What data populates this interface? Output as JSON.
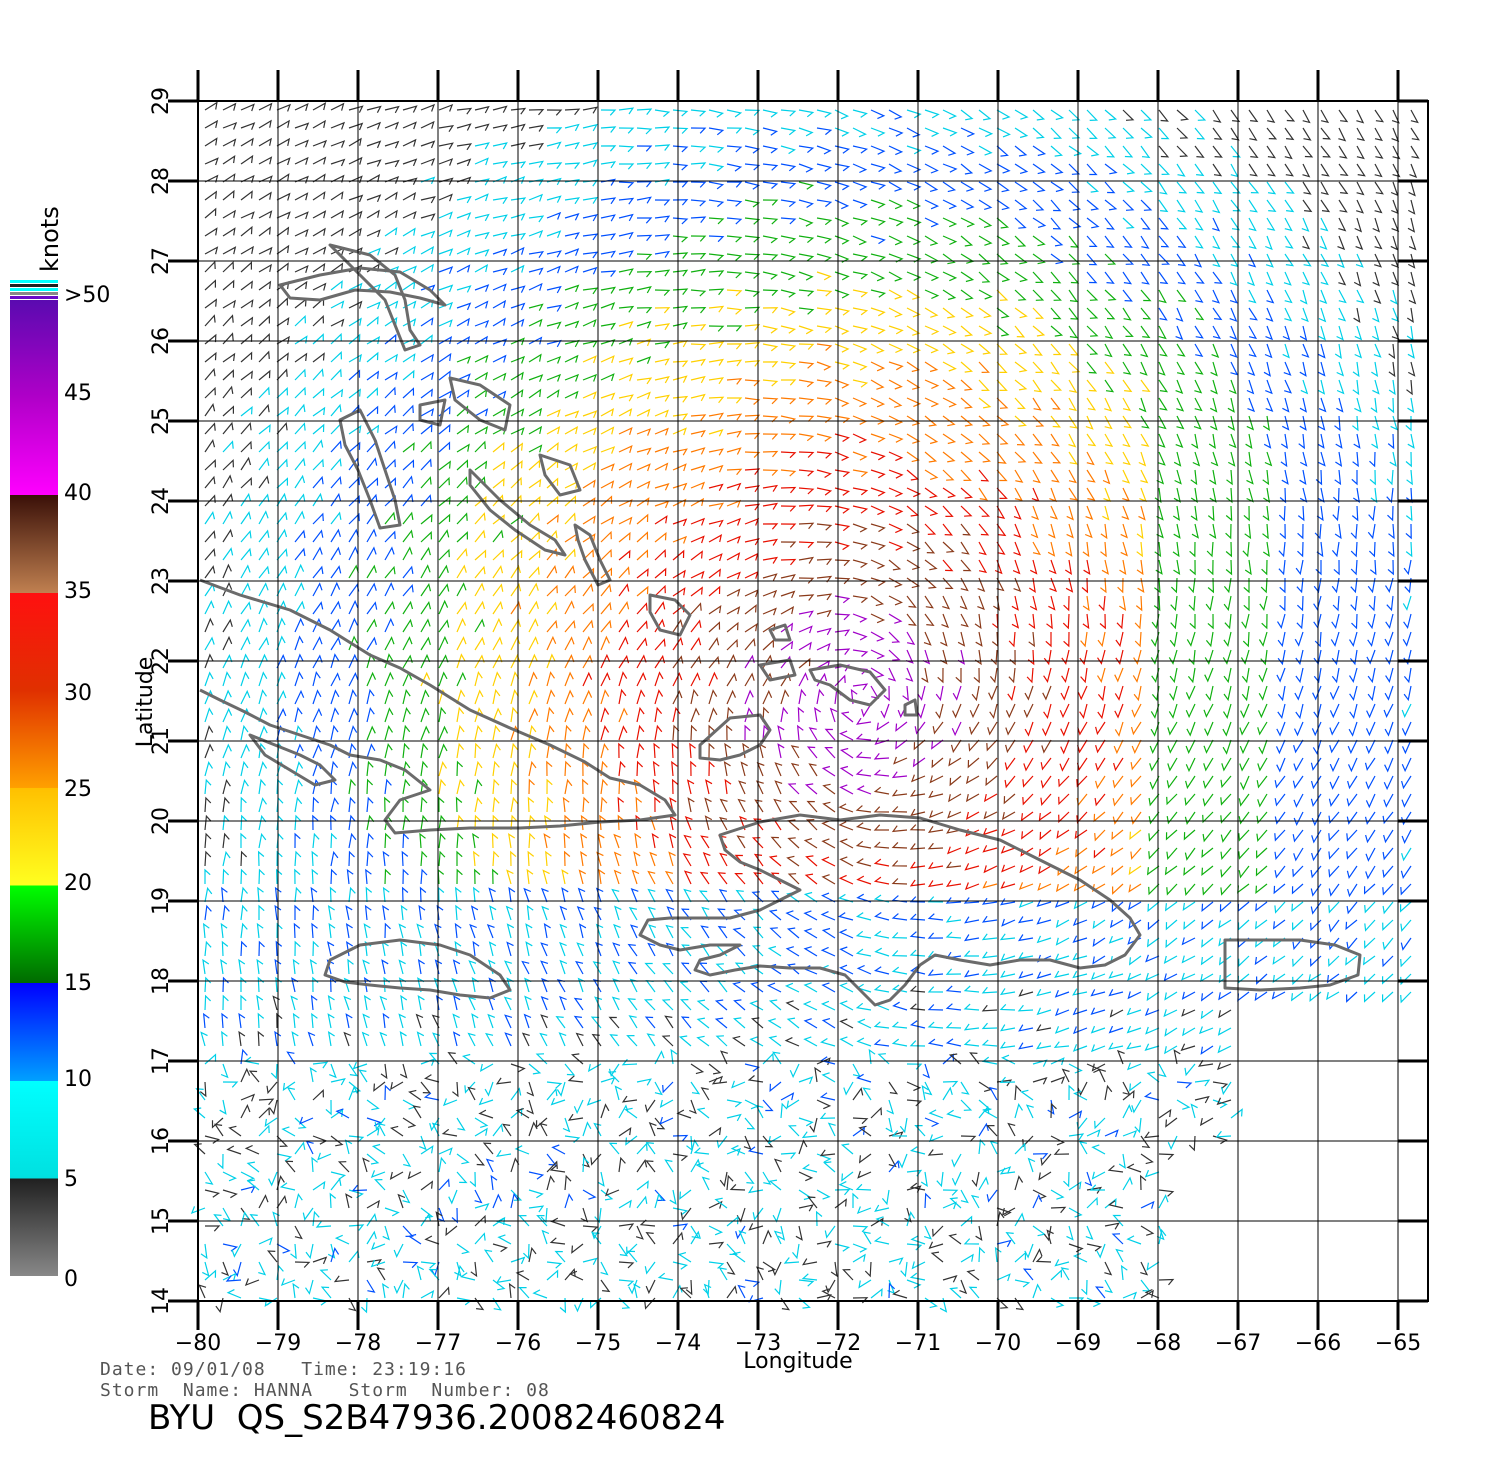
{
  "map": {
    "x_label": "Longitude",
    "y_label": "Latitude",
    "lon_ticks": [
      "−80",
      "−79",
      "−78",
      "−77",
      "−76",
      "−75",
      "−74",
      "−73",
      "−72",
      "−71",
      "−70",
      "−69",
      "−68",
      "−67",
      "−66",
      "−65"
    ],
    "lat_ticks": [
      "29",
      "28",
      "27",
      "26",
      "25",
      "24",
      "23",
      "22",
      "21",
      "20",
      "19",
      "18",
      "17",
      "16",
      "15",
      "14"
    ]
  },
  "legend": {
    "title": "knots",
    "labels": [
      ">50",
      "45",
      "40",
      "35",
      "30",
      "25",
      "20",
      "15",
      "10",
      "5",
      "0"
    ],
    "colors": [
      "#6a0ac9",
      "#c000c8",
      "#ff00ff",
      "#3b120a",
      "#a0643a",
      "#ff0000",
      "#e84a00",
      "#ff9800",
      "#ffd800",
      "#ffff20",
      "#00ff00",
      "#007a00",
      "#0000ff",
      "#0094ff",
      "#00ffff",
      "#303030",
      "#888888"
    ]
  },
  "footer": {
    "date_line": "Date: 09/01/08   Time: 23:19:16",
    "storm_line": "Storm  Name: HANNA   Storm  Number: 08",
    "product_id": "BYU  QS_S2B47936.20082460824"
  }
}
